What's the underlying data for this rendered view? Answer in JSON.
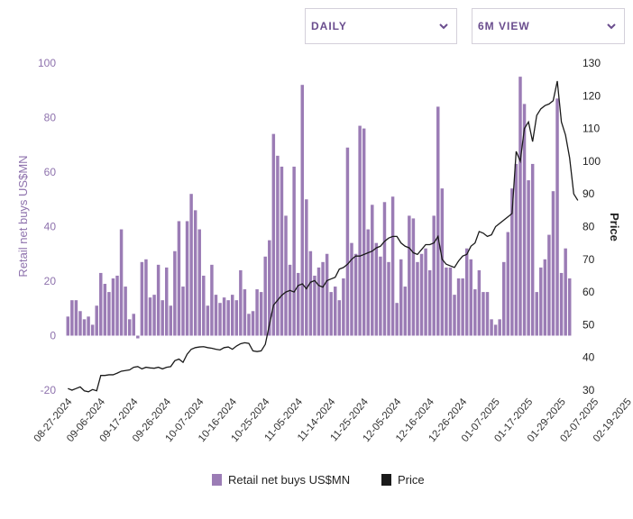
{
  "controls": {
    "period_label": "DAILY",
    "view_label": "6M VIEW",
    "dropdown_icon": "chevron-down-icon"
  },
  "colors": {
    "bars": "#9b7cb5",
    "price_line": "#1a1a1a",
    "left_axis_text": "#8e72ad",
    "accent": "#6a4d8e"
  },
  "chart_data": {
    "type": "bar",
    "title": "",
    "xlabel": "",
    "ylabel": "Retail net buys US$MN",
    "y2label": "Price",
    "ylim": [
      -20,
      100
    ],
    "y2lim": [
      30,
      130
    ],
    "yticks": [
      -20,
      0,
      20,
      40,
      60,
      80,
      100
    ],
    "y2ticks": [
      30,
      40,
      50,
      60,
      70,
      80,
      90,
      100,
      110,
      120,
      130
    ],
    "xtick_labels": [
      "08-27-2024",
      "09-06-2024",
      "09-17-2024",
      "09-26-2024",
      "10-07-2024",
      "10-16-2024",
      "10-25-2024",
      "11-05-2024",
      "11-14-2024",
      "11-25-2024",
      "12-05-2024",
      "12-16-2024",
      "12-26-2024",
      "01-07-2025",
      "01-17-2025",
      "01-29-2025",
      "02-07-2025",
      "02-19-2025"
    ],
    "xtick_index": [
      0,
      8,
      16,
      24,
      32,
      40,
      48,
      56,
      64,
      72,
      80,
      88,
      96,
      104,
      112,
      120,
      128,
      136
    ],
    "grid": false,
    "legend_position": "bottom",
    "series": [
      {
        "name": "Retail net buys US$MN",
        "type": "bar",
        "axis": "left",
        "values": [
          7,
          13,
          13,
          9,
          6,
          7,
          4,
          11,
          23,
          19,
          16,
          21,
          22,
          39,
          18,
          6,
          8,
          -1,
          27,
          28,
          14,
          15,
          26,
          13,
          25,
          11,
          31,
          42,
          18,
          42,
          52,
          46,
          39,
          22,
          11,
          26,
          15,
          12,
          14,
          13,
          15,
          13,
          24,
          17,
          8,
          9,
          17,
          16,
          29,
          35,
          74,
          66,
          62,
          44,
          26,
          62,
          23,
          92,
          50,
          31,
          22,
          25,
          27,
          30,
          16,
          18,
          13,
          21,
          69,
          34,
          30,
          77,
          76,
          39,
          48,
          34,
          29,
          49,
          27,
          51,
          12,
          28,
          18,
          44,
          43,
          27,
          30,
          32,
          24,
          44,
          84,
          54,
          25,
          25,
          15,
          21,
          21,
          32,
          28,
          17,
          24,
          16,
          16,
          6,
          4,
          6,
          27,
          38,
          54,
          63,
          95,
          85,
          57,
          63,
          16,
          25,
          28,
          37,
          53,
          87,
          23,
          32,
          21
        ]
      },
      {
        "name": "Price",
        "type": "line",
        "axis": "right",
        "values": [
          30.5,
          30.0,
          30.5,
          31.0,
          29.8,
          29.5,
          30.2,
          29.8,
          34.5,
          34.5,
          34.7,
          34.7,
          35.2,
          35.8,
          36.0,
          36.2,
          37.0,
          37.2,
          36.5,
          37.0,
          36.8,
          36.7,
          37.0,
          36.5,
          37.0,
          37.2,
          39.0,
          39.5,
          38.5,
          41.0,
          42.5,
          43.0,
          43.2,
          43.3,
          43.0,
          42.8,
          42.5,
          42.3,
          43.0,
          43.2,
          42.5,
          43.5,
          44.2,
          44.5,
          44.3,
          42.0,
          41.8,
          42.0,
          44.0,
          50.0,
          56.0,
          57.5,
          59.0,
          60.0,
          60.5,
          60.0,
          62.0,
          62.5,
          61.0,
          63.0,
          63.5,
          62.0,
          61.5,
          63.5,
          64.0,
          64.5,
          67.0,
          67.5,
          68.5,
          70.0,
          71.0,
          71.0,
          71.5,
          72.0,
          72.5,
          73.5,
          74.0,
          75.5,
          76.5,
          77.0,
          77.0,
          75.0,
          74.0,
          73.5,
          72.0,
          71.5,
          73.0,
          74.5,
          74.5,
          75.0,
          77.0,
          70.0,
          68.5,
          68.0,
          67.5,
          69.5,
          71.0,
          71.5,
          74.0,
          75.0,
          78.5,
          78.0,
          77.0,
          77.5,
          80.0,
          81.0,
          82.0,
          83.0,
          84.0,
          103.0,
          100.0,
          110.0,
          112.0,
          106.0,
          114.0,
          116.0,
          117.0,
          117.5,
          118.5,
          124.5,
          112.0,
          108.0,
          101.0,
          90.0,
          88.0
        ]
      }
    ]
  },
  "legend": {
    "bars_label": "Retail net buys US$MN",
    "price_label": "Price"
  }
}
